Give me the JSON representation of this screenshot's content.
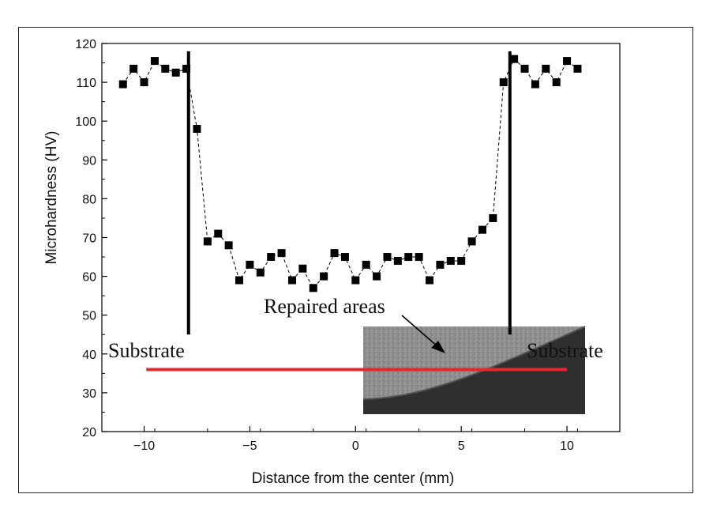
{
  "chart_data": {
    "type": "scatter",
    "xlabel": "Distance from the center (mm)",
    "ylabel": "Microhardness (HV)",
    "xlim": [
      -12,
      12.5
    ],
    "ylim": [
      20,
      120
    ],
    "xticks": [
      -10,
      -5,
      0,
      5,
      10
    ],
    "yticks": [
      20,
      30,
      40,
      50,
      60,
      70,
      80,
      90,
      100,
      110,
      120
    ],
    "xtick_labels": [
      "−10",
      "−5",
      "0",
      "5",
      "10"
    ],
    "ytick_labels": [
      "20",
      "30",
      "40",
      "50",
      "60",
      "70",
      "80",
      "90",
      "100",
      "110",
      "120"
    ],
    "series": [
      {
        "name": "Microhardness",
        "x": [
          -11,
          -10.5,
          -10,
          -9.5,
          -9,
          -8.5,
          -8,
          -7.5,
          -7,
          -6.5,
          -6,
          -5.5,
          -5,
          -4.5,
          -4,
          -3.5,
          -3,
          -2.5,
          -2,
          -1.5,
          -1,
          -0.5,
          0,
          0.5,
          1,
          1.5,
          2,
          2.5,
          3,
          3.5,
          4,
          4.5,
          5,
          5.5,
          6,
          6.5,
          7,
          7.5,
          8,
          8.5,
          9,
          9.5,
          10,
          10.5
        ],
        "y": [
          109.5,
          113.5,
          110,
          115.5,
          113.5,
          112.5,
          113.5,
          98,
          69,
          71,
          68,
          59,
          63,
          61,
          65,
          66,
          59,
          62,
          57,
          60,
          66,
          65,
          59,
          63,
          60,
          65,
          64,
          65,
          65,
          59,
          63,
          64,
          64,
          69,
          72,
          75,
          110,
          116,
          113.5,
          109.5,
          113.5,
          110,
          115.5,
          113.5
        ],
        "marker": "square",
        "line": "dashed",
        "color": "#000000"
      }
    ],
    "annotations": {
      "substrate_left": "Substrate",
      "substrate_right": "Substrate",
      "repaired": "Repaired areas",
      "boundary_left_x": -7.9,
      "boundary_right_x": 7.3,
      "boundary_ymin": 45,
      "boundary_ymax": 118,
      "red_line_y": 36,
      "red_line_x": [
        -9.9,
        10
      ],
      "red_line_color": "#e8262c"
    }
  }
}
